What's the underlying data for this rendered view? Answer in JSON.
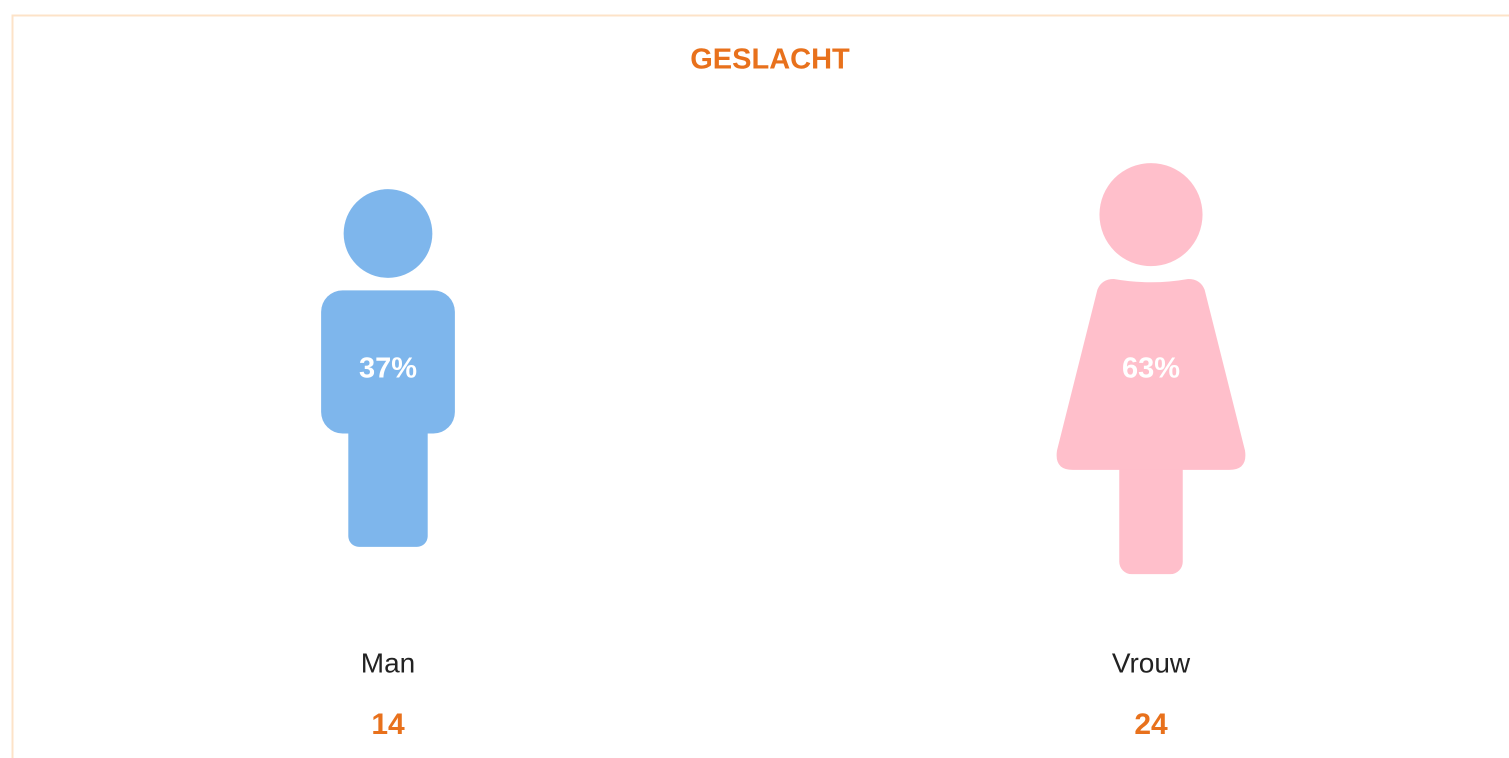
{
  "chart_data": {
    "type": "pictogram",
    "title": "GESLACHT",
    "categories": [
      "Man",
      "Vrouw"
    ],
    "values": [
      37,
      63
    ],
    "value_labels": [
      "37%",
      "63%"
    ],
    "counts": [
      14,
      24
    ],
    "colors": [
      "#7eb6ec",
      "#ffbfcb"
    ],
    "icons": [
      "male",
      "female"
    ],
    "title_color": "#e8711c",
    "count_color": "#e8711c"
  }
}
